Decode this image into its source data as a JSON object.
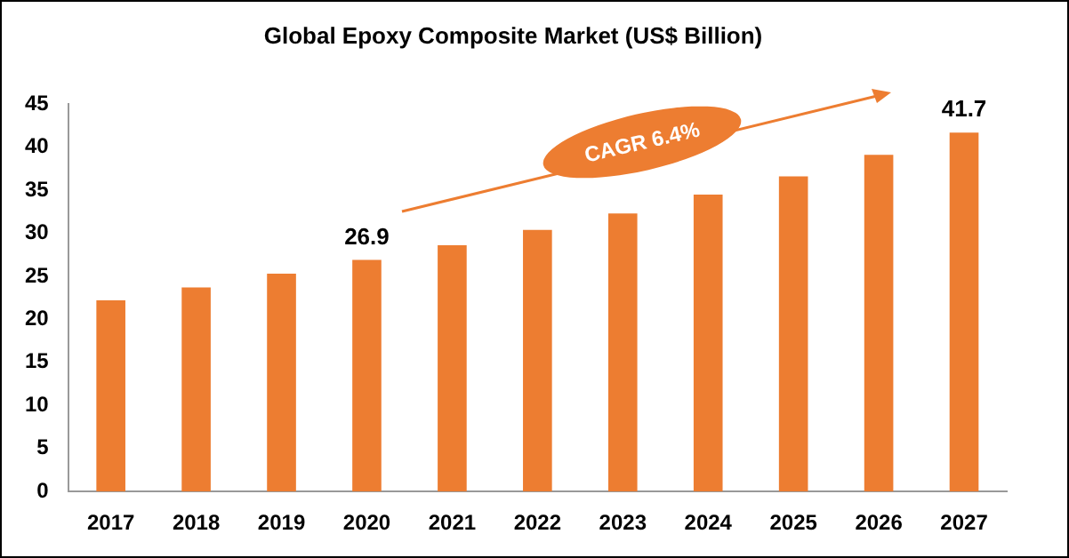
{
  "chart_data": {
    "type": "bar",
    "title": "Global Epoxy Composite Market (US$ Billion)",
    "categories": [
      "2017",
      "2018",
      "2019",
      "2020",
      "2021",
      "2022",
      "2023",
      "2024",
      "2025",
      "2026",
      "2027"
    ],
    "values": [
      22.2,
      23.7,
      25.3,
      26.9,
      28.6,
      30.4,
      32.3,
      34.5,
      36.6,
      39.1,
      41.7
    ],
    "value_labels": [
      null,
      null,
      null,
      "26.9",
      null,
      null,
      null,
      null,
      null,
      null,
      "41.7"
    ],
    "color": "#ed7d31",
    "ylim": [
      0,
      45
    ],
    "yticks": [
      0,
      5,
      10,
      15,
      20,
      25,
      30,
      35,
      40,
      45
    ],
    "grid": false,
    "legend": false,
    "annotations": [
      "CAGR 6.4%"
    ]
  }
}
